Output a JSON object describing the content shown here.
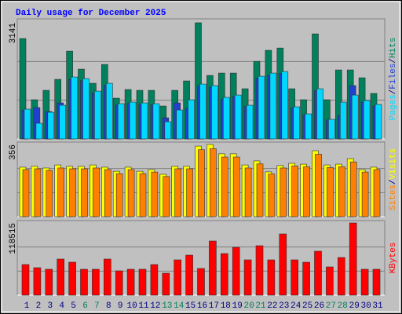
{
  "chart_data": [
    {
      "type": "bar",
      "title": "Daily usage for December 2025",
      "ylim": [
        0,
        3141
      ],
      "yticks": [
        3141
      ],
      "legend_separator": "/",
      "series": [
        {
          "name": "Hits",
          "color": "#00805c",
          "values": [
            2714,
            1060,
            1315,
            1611,
            2374,
            1887,
            1505,
            2014,
            1102,
            1336,
            1314,
            1314,
            890,
            1314,
            1569,
            3141,
            1717,
            1781,
            1781,
            1357,
            2099,
            2396,
            2459,
            1357,
            1060,
            2841,
            1060,
            1866,
            1866,
            1654,
            1230
          ]
        },
        {
          "name": "Files",
          "color": "#2040d0",
          "values": [
            780,
            848,
            740,
            975,
            1610,
            1580,
            1250,
            1450,
            920,
            960,
            940,
            920,
            572,
            975,
            827,
            1430,
            1400,
            1080,
            1150,
            880,
            1640,
            1720,
            1770,
            840,
            650,
            1310,
            510,
            636,
            1442,
            1000,
            900
          ]
        },
        {
          "name": "Pages",
          "color": "#00d8ff",
          "values": [
            806,
            424,
            721,
            912,
            1675,
            1632,
            1293,
            1505,
            954,
            996,
            975,
            954,
            466,
            784,
            1060,
            1484,
            1442,
            1124,
            1187,
            912,
            1696,
            1781,
            1823,
            869,
            678,
            1357,
            530,
            996,
            1187,
            1039,
            933
          ]
        }
      ]
    },
    {
      "type": "bar",
      "ylim": [
        0,
        356
      ],
      "yticks": [
        356
      ],
      "legend_separator": "/",
      "series": [
        {
          "name": "Visits",
          "color": "#ffff00",
          "values": [
            244,
            248,
            240,
            255,
            248,
            248,
            255,
            244,
            224,
            244,
            224,
            232,
            209,
            248,
            248,
            348,
            356,
            310,
            310,
            255,
            275,
            221,
            252,
            263,
            259,
            325,
            255,
            259,
            286,
            232,
            244
          ]
        },
        {
          "name": "Sites",
          "color": "#ff8000",
          "values": [
            232,
            236,
            228,
            240,
            236,
            236,
            240,
            232,
            212,
            232,
            212,
            220,
            198,
            236,
            236,
            330,
            335,
            294,
            294,
            240,
            260,
            210,
            240,
            250,
            246,
            308,
            242,
            246,
            270,
            220,
            232
          ]
        }
      ]
    },
    {
      "type": "bar",
      "ylim": [
        0,
        118515
      ],
      "yticks": [
        118515
      ],
      "categories": [
        "1",
        "2",
        "3",
        "4",
        "5",
        "6",
        "7",
        "8",
        "9",
        "10",
        "11",
        "12",
        "13",
        "14",
        "15",
        "16",
        "17",
        "18",
        "19",
        "20",
        "21",
        "22",
        "23",
        "24",
        "25",
        "26",
        "27",
        "28",
        "29",
        "30",
        "31"
      ],
      "weekends": [
        "6",
        "7",
        "13",
        "14",
        "20",
        "21",
        "27",
        "28"
      ],
      "weekend_color": "#00805c",
      "series": [
        {
          "name": "KBytes",
          "color": "#ff0000",
          "values": [
            50232,
            45080,
            42504,
            59248,
            54096,
            42504,
            42504,
            59248,
            39928,
            42504,
            42504,
            50232,
            36064,
            57960,
            65688,
            43792,
            88872,
            68264,
            78568,
            57960,
            81144,
            57960,
            100464,
            57960,
            54096,
            72128,
            46368,
            61824,
            118515,
            42504,
            42504
          ]
        }
      ]
    }
  ]
}
